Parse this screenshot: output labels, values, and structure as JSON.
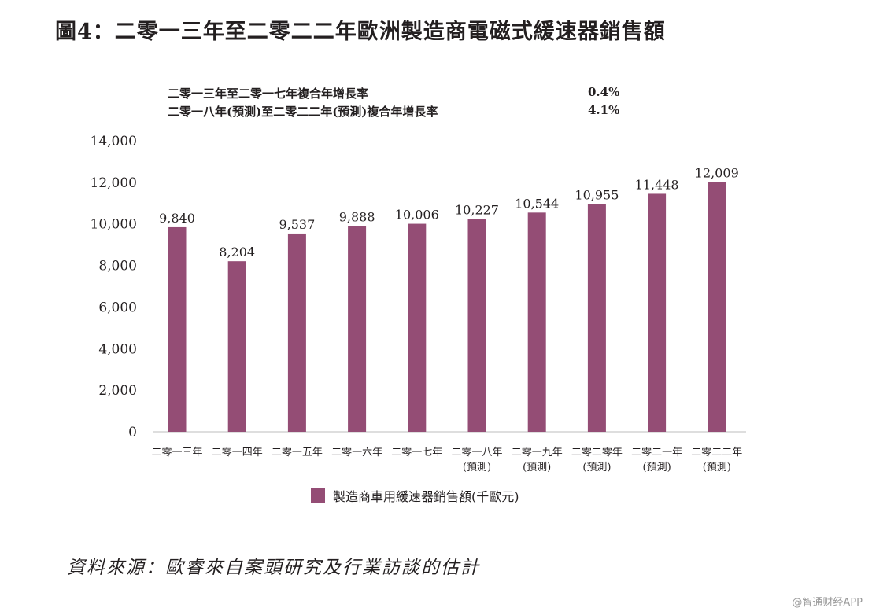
{
  "colors": {
    "bar": "#944d75",
    "axis": "#bdbdbd",
    "text": "#231f20"
  },
  "cagr": [
    {
      "label": "二零一三年至二零一七年複合年增長率",
      "value": "0.4%"
    },
    {
      "label": "二零一八年(預測)至二零二二年(預測)複合年增長率",
      "value": "4.1%"
    }
  ],
  "chart_data": {
    "type": "bar",
    "title": "圖4：二零一三年至二零二二年歐洲製造商電磁式緩速器銷售額",
    "categories": [
      [
        "二零一三年"
      ],
      [
        "二零一四年"
      ],
      [
        "二零一五年"
      ],
      [
        "二零一六年"
      ],
      [
        "二零一七年"
      ],
      [
        "二零一八年",
        "(預測)"
      ],
      [
        "二零一九年",
        "(預測)"
      ],
      [
        "二零二零年",
        "(預測)"
      ],
      [
        "二零二一年",
        "(預測)"
      ],
      [
        "二零二二年",
        "(預測)"
      ]
    ],
    "values": [
      9840,
      8204,
      9537,
      9888,
      10006,
      10227,
      10544,
      10955,
      11448,
      12009
    ],
    "value_labels": [
      "9,840",
      "8,204",
      "9,537",
      "9,888",
      "10,006",
      "10,227",
      "10,544",
      "10,955",
      "11,448",
      "12,009"
    ],
    "ylim": [
      0,
      14000
    ],
    "yticks": [
      0,
      2000,
      4000,
      6000,
      8000,
      10000,
      12000,
      14000
    ],
    "ytick_labels": [
      "0",
      "2,000",
      "4,000",
      "6,000",
      "8,000",
      "10,000",
      "12,000",
      "14,000"
    ],
    "xlabel": "",
    "ylabel": "",
    "legend": [
      "製造商車用緩速器銷售額(千歐元)"
    ],
    "grid": false
  },
  "source": "資料來源：歐睿來自案頭研究及行業訪談的估計",
  "watermark": "@智通财经APP"
}
